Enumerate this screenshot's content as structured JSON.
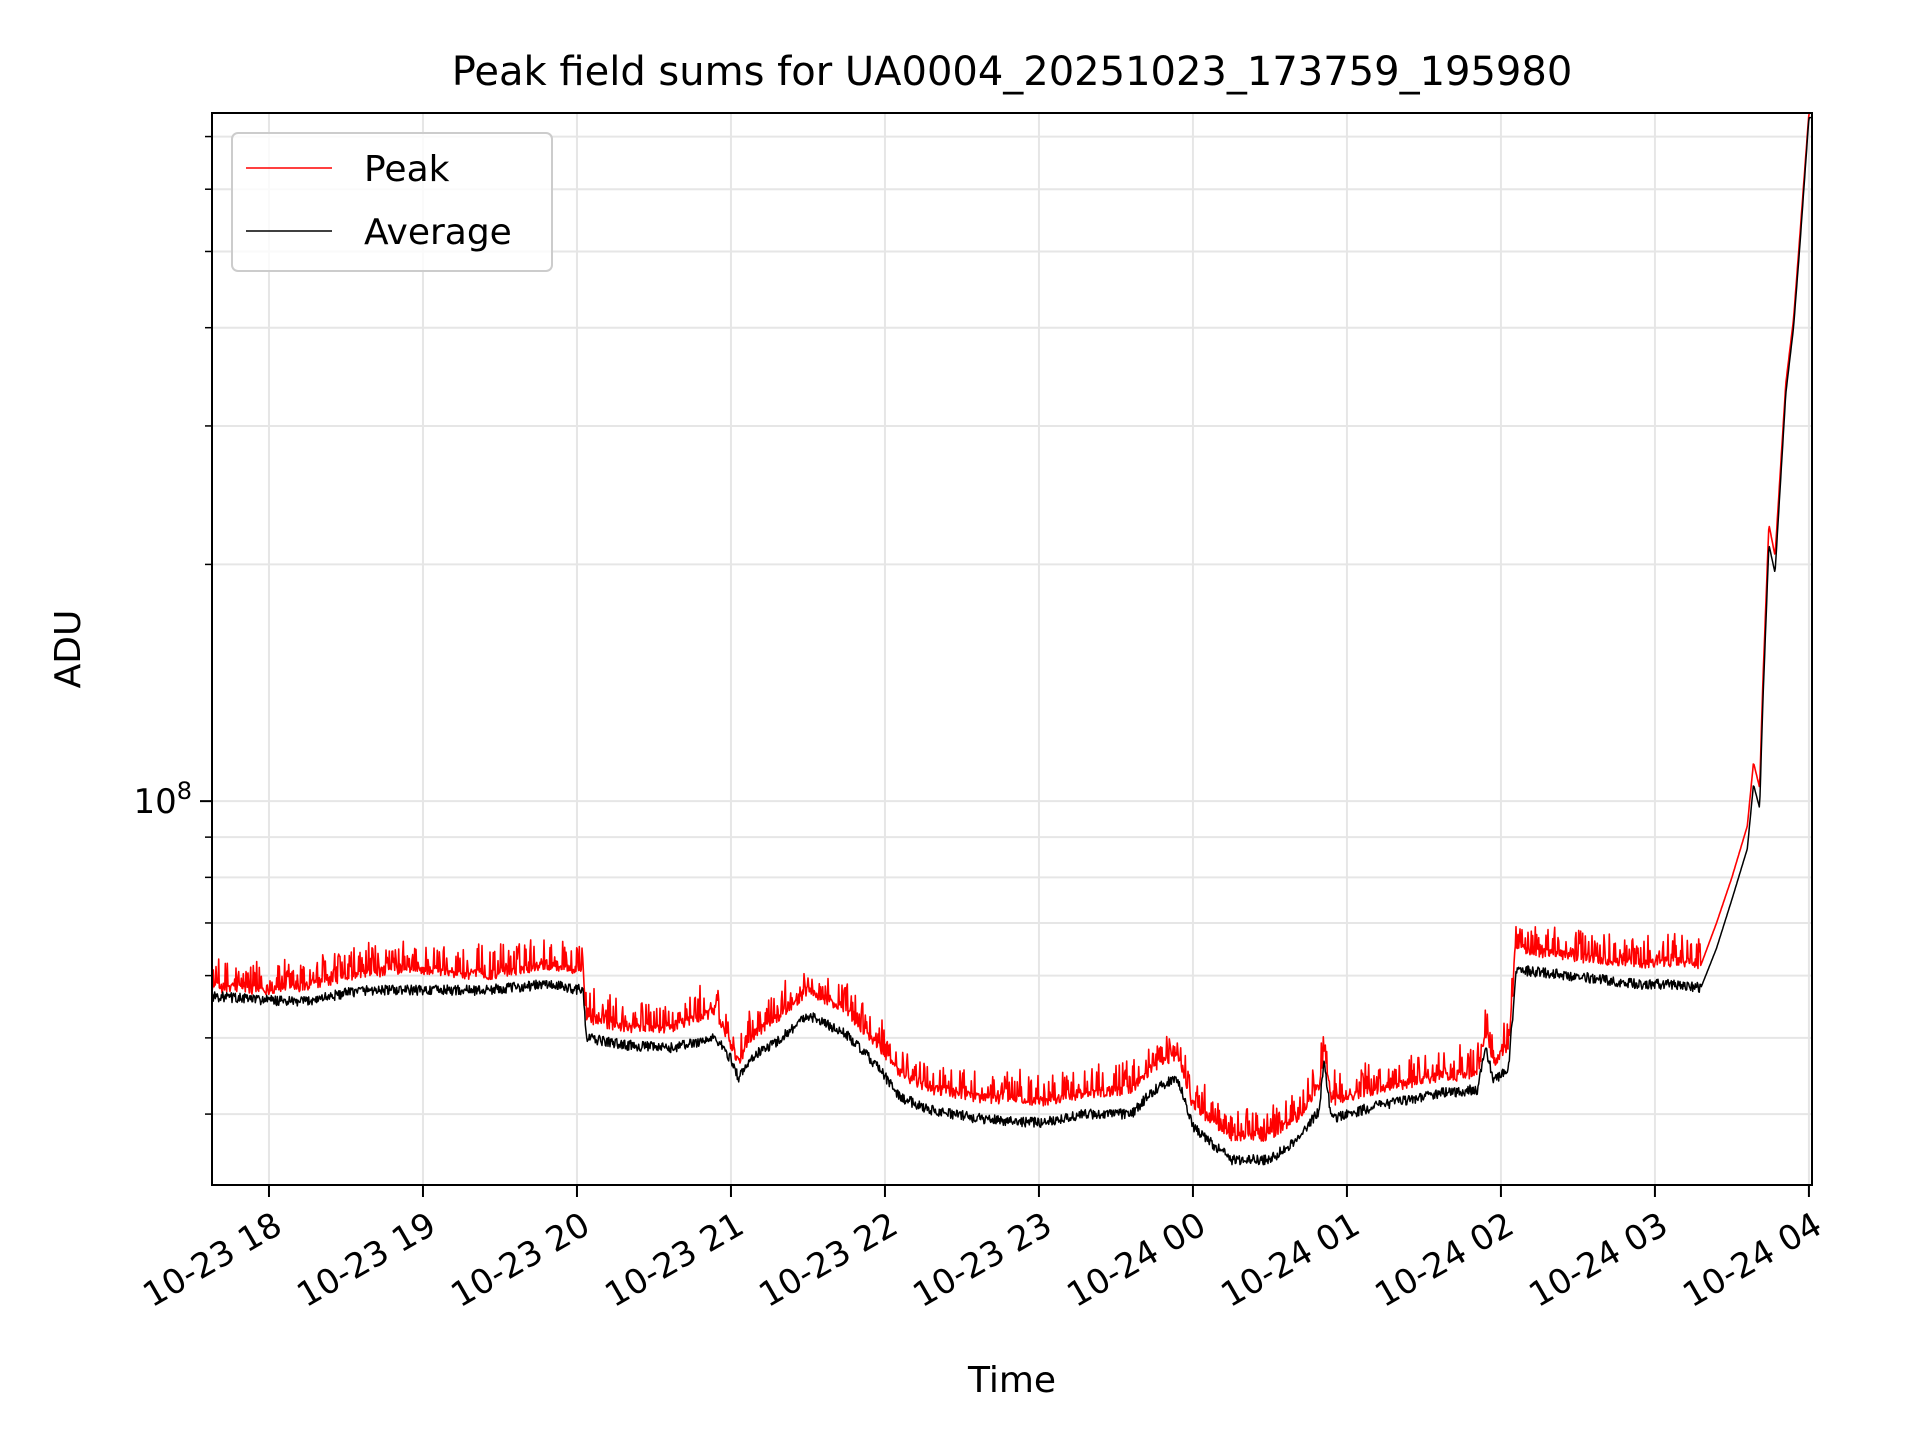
{
  "chart_data": {
    "type": "line",
    "title": "Peak field sums for UA0004_20251023_173759_195980",
    "xlabel": "Time",
    "ylabel": "ADU",
    "yscale": "log",
    "grid": true,
    "legend_position": "upper-left",
    "xlim_hours": [
      17.63,
      28.02
    ],
    "ylim": [
      32500000,
      750000000
    ],
    "x_ticks": [
      {
        "hour": 18,
        "label": "10-23 18"
      },
      {
        "hour": 19,
        "label": "10-23 19"
      },
      {
        "hour": 20,
        "label": "10-23 20"
      },
      {
        "hour": 21,
        "label": "10-23 21"
      },
      {
        "hour": 22,
        "label": "10-23 22"
      },
      {
        "hour": 23,
        "label": "10-23 23"
      },
      {
        "hour": 24,
        "label": "10-24 00"
      },
      {
        "hour": 25,
        "label": "10-24 01"
      },
      {
        "hour": 26,
        "label": "10-24 02"
      },
      {
        "hour": 27,
        "label": "10-24 03"
      },
      {
        "hour": 28,
        "label": "10-24 04"
      }
    ],
    "y_major_tick": {
      "value": 100000000,
      "base": "10",
      "exponent": "8"
    },
    "y_minor_ticks": [
      40000000,
      50000000,
      60000000,
      70000000,
      80000000,
      90000000,
      200000000,
      300000000,
      400000000,
      500000000,
      600000000,
      700000000
    ],
    "series": [
      {
        "name": "Peak",
        "color": "#ff0000",
        "x_hours": [
          17.63,
          17.9,
          18.2,
          18.6,
          19.0,
          19.4,
          19.8,
          20.04,
          20.06,
          20.3,
          20.6,
          20.9,
          21.0,
          21.05,
          21.15,
          21.3,
          21.5,
          21.75,
          21.95,
          22.1,
          22.3,
          22.6,
          23.0,
          23.3,
          23.6,
          23.75,
          23.9,
          24.0,
          24.25,
          24.5,
          24.7,
          24.82,
          24.85,
          24.9,
          25.2,
          25.6,
          25.85,
          25.9,
          25.95,
          26.05,
          26.1,
          26.3,
          26.6,
          26.9,
          27.1,
          27.3,
          27.4,
          27.5,
          27.6,
          27.64,
          27.68,
          27.7,
          27.74,
          27.78,
          27.85,
          27.9,
          27.94,
          28.0
        ],
        "values": [
          58000000,
          57500000,
          58000000,
          60500000,
          61000000,
          60000000,
          62000000,
          61000000,
          53000000,
          51500000,
          51500000,
          54000000,
          49000000,
          46500000,
          50500000,
          53000000,
          57500000,
          54000000,
          49000000,
          45000000,
          43000000,
          42000000,
          41500000,
          42500000,
          43000000,
          46000000,
          47500000,
          41000000,
          37500000,
          37500000,
          40000000,
          43500000,
          48000000,
          41500000,
          43000000,
          44500000,
          45000000,
          51000000,
          46500000,
          49000000,
          65000000,
          64000000,
          63000000,
          62000000,
          62500000,
          62000000,
          70000000,
          80000000,
          93000000,
          112000000,
          104000000,
          140000000,
          225000000,
          205000000,
          340000000,
          410000000,
          520000000,
          750000000
        ]
      },
      {
        "name": "Average",
        "color": "#000000",
        "x_hours": [
          17.63,
          17.9,
          18.2,
          18.6,
          19.0,
          19.4,
          19.8,
          20.04,
          20.06,
          20.3,
          20.6,
          20.9,
          21.0,
          21.05,
          21.15,
          21.3,
          21.5,
          21.75,
          21.95,
          22.1,
          22.3,
          22.6,
          23.0,
          23.3,
          23.6,
          23.75,
          23.9,
          24.0,
          24.25,
          24.5,
          24.7,
          24.82,
          24.85,
          24.9,
          25.2,
          25.6,
          25.85,
          25.9,
          25.95,
          26.05,
          26.1,
          26.3,
          26.6,
          26.9,
          27.1,
          27.3,
          27.4,
          27.5,
          27.6,
          27.64,
          27.68,
          27.7,
          27.74,
          27.78,
          27.85,
          27.9,
          27.94,
          28.0
        ],
        "values": [
          56500000,
          56000000,
          55500000,
          57500000,
          57500000,
          57500000,
          58500000,
          57500000,
          50000000,
          49000000,
          48500000,
          50000000,
          47000000,
          44500000,
          47500000,
          49500000,
          53500000,
          50500000,
          46000000,
          42000000,
          40500000,
          39500000,
          39000000,
          40000000,
          40000000,
          43000000,
          44500000,
          38500000,
          35000000,
          35000000,
          37500000,
          40500000,
          46500000,
          39500000,
          41000000,
          42500000,
          43000000,
          49000000,
          44000000,
          46000000,
          61000000,
          60500000,
          59500000,
          58500000,
          58500000,
          58000000,
          65000000,
          75000000,
          87000000,
          105000000,
          98000000,
          132000000,
          212000000,
          195000000,
          330000000,
          400000000,
          505000000,
          740000000
        ]
      }
    ]
  }
}
